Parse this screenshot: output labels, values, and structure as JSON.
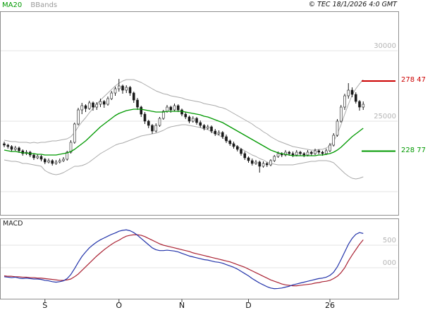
{
  "header": {
    "legend_ma20": "MA20",
    "legend_bbands": "BBands",
    "copyright": "© TEC 18/1/2026 4:0 GMT"
  },
  "macd_panel_title": "MACD",
  "axis": {
    "price_ticks": [
      {
        "label": "30000",
        "value": 300.0
      },
      {
        "label": "25000",
        "value": 250.0
      }
    ],
    "macd_ticks": [
      {
        "label": "500",
        "value": 5.0
      },
      {
        "label": "000",
        "value": 0.0
      }
    ],
    "x_labels": [
      {
        "label": "S",
        "index": 11
      },
      {
        "label": "O",
        "index": 31
      },
      {
        "label": "N",
        "index": 48
      },
      {
        "label": "D",
        "index": 66
      },
      {
        "label": "26",
        "index": 88
      }
    ]
  },
  "chart_data": {
    "type": "candlestick",
    "panels": [
      "price",
      "macd"
    ],
    "price_axis_range": [
      183,
      328
    ],
    "macd_axis_range": [
      -7,
      11
    ],
    "grid": true,
    "levels": [
      {
        "label": "278 47",
        "value": 278.47,
        "color": "#cc0000",
        "role": "resistance"
      },
      {
        "label": "228 77",
        "value": 228.77,
        "color": "#009900",
        "role": "support"
      }
    ],
    "colors": {
      "ma20": "#009900",
      "bbands": "#aaaaaa",
      "candle": "#1a1a1a",
      "macd_line": "#2233aa",
      "macd_signal": "#aa2233"
    },
    "candles": [
      [
        234,
        235.5,
        231.5,
        233
      ],
      [
        233,
        234,
        230.5,
        232
      ],
      [
        232,
        233,
        228.5,
        230
      ],
      [
        230,
        232.5,
        229,
        231
      ],
      [
        231,
        232,
        227.5,
        229
      ],
      [
        229,
        230,
        225.5,
        227
      ],
      [
        227,
        229.5,
        226,
        228
      ],
      [
        228,
        229,
        224.5,
        226
      ],
      [
        226,
        227,
        222.5,
        224
      ],
      [
        224,
        226.5,
        223,
        225
      ],
      [
        225,
        226,
        221.5,
        223
      ],
      [
        223,
        224,
        219.5,
        221
      ],
      [
        221,
        223.5,
        220,
        222
      ],
      [
        222,
        223,
        218.5,
        220
      ],
      [
        220,
        222.5,
        219,
        221
      ],
      [
        221,
        223.5,
        220,
        222
      ],
      [
        222,
        224.5,
        221,
        223
      ],
      [
        223,
        229,
        222,
        228
      ],
      [
        228,
        236.5,
        227,
        235
      ],
      [
        235,
        249,
        234,
        248
      ],
      [
        248,
        259.5,
        247,
        258
      ],
      [
        258,
        263,
        255,
        261
      ],
      [
        261,
        262,
        256.5,
        259
      ],
      [
        259,
        264.5,
        258,
        263
      ],
      [
        263,
        264,
        257.5,
        260
      ],
      [
        260,
        263.5,
        258,
        262
      ],
      [
        262,
        266,
        260,
        264
      ],
      [
        264,
        265,
        259.5,
        262
      ],
      [
        262,
        267.5,
        261,
        266
      ],
      [
        266,
        271.5,
        265,
        270
      ],
      [
        270,
        274.5,
        268,
        273
      ],
      [
        273,
        280,
        271,
        275
      ],
      [
        275,
        276,
        269.5,
        272
      ],
      [
        272,
        275.5,
        270,
        274
      ],
      [
        274,
        275,
        268,
        270
      ],
      [
        270,
        271,
        263,
        265
      ],
      [
        265,
        266.5,
        258,
        260
      ],
      [
        260,
        261,
        253,
        255
      ],
      [
        255,
        256.5,
        248,
        250
      ],
      [
        250,
        251,
        245,
        247
      ],
      [
        247,
        248,
        241,
        243
      ],
      [
        243,
        248.5,
        242,
        247
      ],
      [
        247,
        253,
        246,
        252
      ],
      [
        252,
        258,
        251,
        257
      ],
      [
        257,
        261.5,
        256,
        260
      ],
      [
        260,
        261,
        256,
        258
      ],
      [
        258,
        262.5,
        257,
        261
      ],
      [
        261,
        262,
        256.5,
        258
      ],
      [
        258,
        259,
        253.5,
        255
      ],
      [
        255,
        256.5,
        251.5,
        253
      ],
      [
        253,
        254,
        248.5,
        250
      ],
      [
        250,
        253.5,
        249,
        252
      ],
      [
        252,
        253,
        247.5,
        249
      ],
      [
        249,
        250.5,
        245.5,
        247
      ],
      [
        247,
        248,
        243.5,
        245
      ],
      [
        245,
        247.5,
        244,
        246
      ],
      [
        246,
        247,
        241.5,
        243
      ],
      [
        243,
        244.5,
        239.5,
        241
      ],
      [
        241,
        243.5,
        240,
        242
      ],
      [
        242,
        243,
        237.5,
        239
      ],
      [
        239,
        240.5,
        234.5,
        236
      ],
      [
        236,
        237,
        232.5,
        234
      ],
      [
        234,
        235.5,
        230.5,
        232
      ],
      [
        232,
        233,
        228.5,
        230
      ],
      [
        230,
        231,
        225.5,
        227
      ],
      [
        227,
        228.5,
        222.5,
        224
      ],
      [
        224,
        225,
        220.5,
        222
      ],
      [
        222,
        223.5,
        218.5,
        220
      ],
      [
        220,
        222.5,
        219,
        221
      ],
      [
        221,
        222,
        213.5,
        218
      ],
      [
        218,
        221.5,
        217,
        220
      ],
      [
        220,
        221,
        217.5,
        219
      ],
      [
        219,
        223,
        218,
        222
      ],
      [
        222,
        226,
        221,
        225
      ],
      [
        225,
        228.5,
        224,
        227
      ],
      [
        227,
        228,
        224.5,
        226
      ],
      [
        226,
        229.5,
        225,
        228
      ],
      [
        228,
        229,
        225.5,
        227
      ],
      [
        227,
        228.5,
        224.5,
        226
      ],
      [
        226,
        229.5,
        225,
        228
      ],
      [
        228,
        229,
        225.5,
        227
      ],
      [
        227,
        228,
        224.5,
        226
      ],
      [
        226,
        229.5,
        225,
        228
      ],
      [
        228,
        229,
        225.5,
        227
      ],
      [
        227,
        230.5,
        226,
        229
      ],
      [
        229,
        230,
        226.5,
        228
      ],
      [
        228,
        229,
        225.5,
        227
      ],
      [
        227,
        230.5,
        226,
        229
      ],
      [
        229,
        234.5,
        228,
        233
      ],
      [
        233,
        241.5,
        232,
        240
      ],
      [
        240,
        251.5,
        239,
        250
      ],
      [
        250,
        261.5,
        249,
        260
      ],
      [
        260,
        269.5,
        258,
        268
      ],
      [
        268,
        277,
        266,
        272
      ],
      [
        272,
        274,
        267,
        269
      ],
      [
        269,
        270.5,
        262.5,
        264
      ],
      [
        264,
        265,
        257.5,
        260
      ],
      [
        260,
        264,
        258,
        262
      ]
    ],
    "ma20": [
      229.5,
      229,
      228.5,
      228.5,
      228,
      227.5,
      227.5,
      227,
      227,
      226.5,
      226.5,
      226,
      226,
      226,
      226,
      226.5,
      227,
      227.5,
      228.5,
      230,
      232,
      234,
      236,
      238.5,
      241,
      243.5,
      246,
      248,
      250,
      252,
      254,
      255.5,
      256.5,
      257.5,
      258,
      258.5,
      258.5,
      258.5,
      258,
      257.5,
      257,
      256.5,
      256.5,
      256.5,
      257,
      257,
      257,
      257,
      257,
      256.5,
      256,
      255.5,
      255,
      254.5,
      253.5,
      253,
      252,
      251,
      250,
      249,
      247.5,
      246,
      244.5,
      243,
      241.5,
      240,
      238.5,
      237,
      235.5,
      234,
      232.5,
      231,
      229.5,
      228.5,
      227.5,
      227,
      226.5,
      226,
      225.5,
      225.5,
      225.5,
      225.5,
      225.5,
      225.5,
      225.5,
      226,
      226,
      226.5,
      227,
      228,
      229.5,
      231.5,
      234,
      236.5,
      239,
      241,
      243,
      245
    ],
    "bb_upper": [
      236.5,
      236,
      235.5,
      235.5,
      235,
      235,
      235,
      234.5,
      235,
      234.5,
      235,
      235,
      235.5,
      236,
      236,
      236.5,
      237,
      237.5,
      239,
      242,
      246,
      249.5,
      252.5,
      256,
      259,
      262,
      265,
      267.5,
      270,
      272.5,
      275,
      277,
      278.5,
      279.5,
      279.5,
      279.5,
      278.5,
      277.5,
      276,
      274.5,
      273,
      271.5,
      270.5,
      269.5,
      269,
      268,
      267.5,
      267,
      266.5,
      265.5,
      265,
      264.5,
      264,
      263.5,
      262.5,
      262,
      261.5,
      261,
      260,
      259.5,
      258.5,
      257,
      255.5,
      254,
      252.5,
      251,
      249.5,
      248,
      246,
      244.5,
      242.5,
      241,
      239,
      237.5,
      236,
      235,
      234,
      233,
      232,
      231.5,
      231,
      230.5,
      230,
      229.5,
      229.5,
      230,
      230,
      231,
      232.5,
      235.5,
      241,
      247.5,
      255,
      262,
      268.5,
      273,
      276.5,
      279.5
    ],
    "bb_lower": [
      222.5,
      222,
      221.5,
      221.5,
      221,
      220,
      220,
      219.5,
      219,
      218.5,
      218,
      215,
      213.5,
      212.5,
      212,
      212.5,
      213.5,
      215,
      216.5,
      218,
      218,
      218.5,
      219.5,
      221,
      223,
      225,
      227,
      228.5,
      230,
      231.5,
      233,
      234,
      234.5,
      235.5,
      236.5,
      237.5,
      238.5,
      239.5,
      240,
      240.5,
      241,
      241.5,
      242.5,
      243.5,
      245,
      246,
      246.5,
      247,
      247.5,
      247.5,
      247,
      246.5,
      246,
      245.5,
      244.5,
      244,
      242.5,
      241,
      240,
      238.5,
      236.5,
      235,
      233.5,
      232,
      230.5,
      229,
      227.5,
      226,
      225,
      223.5,
      222.5,
      221,
      220,
      219.5,
      219,
      219,
      219,
      219,
      219,
      219.5,
      220,
      220.5,
      221,
      221.5,
      221.5,
      222,
      222,
      222,
      221.5,
      220.5,
      218,
      215.5,
      213,
      211,
      209.5,
      209,
      209.5,
      210.5
    ],
    "macd_line": [
      -2,
      -2.1,
      -2.2,
      -2.1,
      -2.3,
      -2.4,
      -2.3,
      -2.4,
      -2.5,
      -2.5,
      -2.6,
      -2.8,
      -2.9,
      -3.1,
      -3.2,
      -3.1,
      -2.9,
      -2.4,
      -1.5,
      -0.2,
      1.2,
      2.5,
      3.5,
      4.4,
      5.1,
      5.7,
      6.2,
      6.6,
      7,
      7.4,
      7.7,
      8.1,
      8.3,
      8.4,
      8.2,
      7.8,
      7.2,
      6.5,
      5.8,
      5.1,
      4.4,
      4,
      3.8,
      3.8,
      3.9,
      3.8,
      3.7,
      3.5,
      3.2,
      2.9,
      2.6,
      2.4,
      2.2,
      2,
      1.8,
      1.7,
      1.5,
      1.3,
      1.2,
      1,
      0.7,
      0.4,
      0.1,
      -0.3,
      -0.8,
      -1.3,
      -1.8,
      -2.4,
      -2.9,
      -3.4,
      -3.8,
      -4.2,
      -4.5,
      -4.65,
      -4.6,
      -4.5,
      -4.3,
      -4.1,
      -3.8,
      -3.6,
      -3.4,
      -3.2,
      -3,
      -2.8,
      -2.6,
      -2.4,
      -2.3,
      -2.1,
      -1.7,
      -1,
      0.2,
      1.8,
      3.5,
      5.2,
      6.5,
      7.4,
      7.8,
      7.6
    ],
    "macd_signal": [
      -1.8,
      -1.9,
      -1.9,
      -2,
      -2,
      -2.1,
      -2.1,
      -2.2,
      -2.2,
      -2.3,
      -2.3,
      -2.4,
      -2.5,
      -2.6,
      -2.7,
      -2.8,
      -2.8,
      -2.7,
      -2.5,
      -2,
      -1.4,
      -0.6,
      0.2,
      1,
      1.8,
      2.6,
      3.3,
      4,
      4.6,
      5.2,
      5.7,
      6.1,
      6.6,
      7,
      7.2,
      7.3,
      7.3,
      7.2,
      6.9,
      6.5,
      6.1,
      5.7,
      5.3,
      5,
      4.8,
      4.6,
      4.4,
      4.2,
      4,
      3.8,
      3.6,
      3.3,
      3.1,
      2.9,
      2.7,
      2.5,
      2.3,
      2.1,
      1.9,
      1.7,
      1.5,
      1.3,
      1,
      0.7,
      0.4,
      0.1,
      -0.3,
      -0.7,
      -1.1,
      -1.5,
      -1.9,
      -2.3,
      -2.7,
      -3,
      -3.3,
      -3.6,
      -3.8,
      -3.9,
      -4,
      -4,
      -3.9,
      -3.8,
      -3.7,
      -3.6,
      -3.4,
      -3.3,
      -3.1,
      -3,
      -2.8,
      -2.4,
      -1.9,
      -1.1,
      0,
      1.5,
      2.8,
      4,
      5.2,
      6.2
    ]
  }
}
